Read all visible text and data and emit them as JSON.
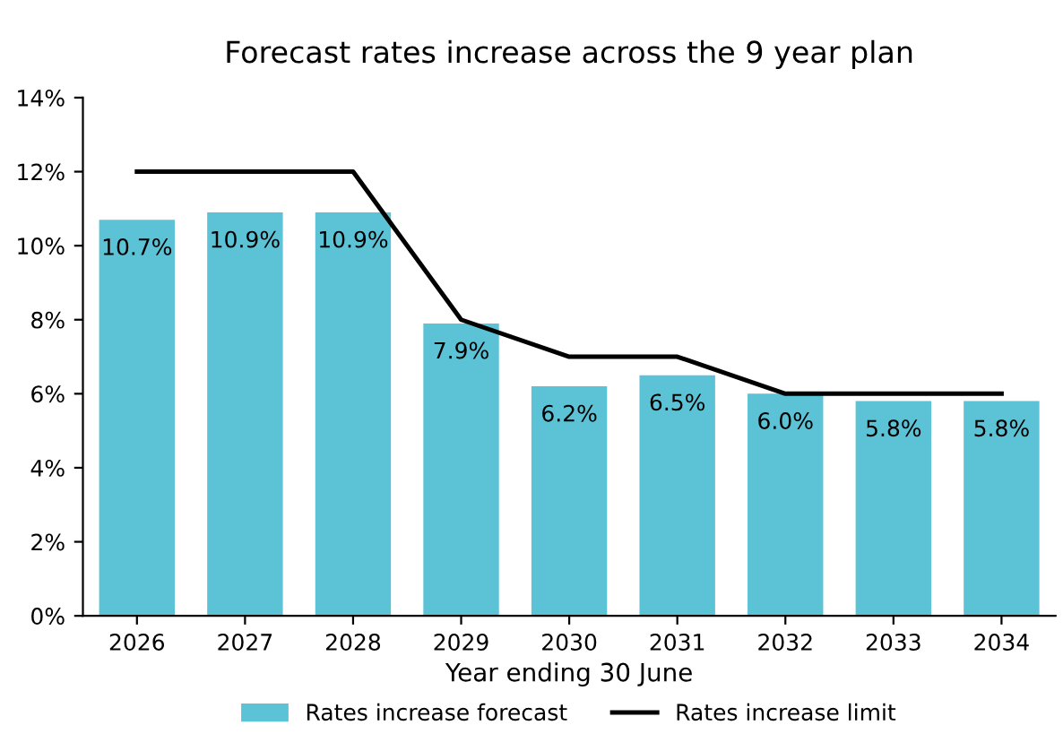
{
  "chart_data": {
    "type": "bar",
    "title": "Forecast rates increase across the 9 year plan",
    "xlabel": "Year ending 30 June",
    "categories": [
      "2026",
      "2027",
      "2028",
      "2029",
      "2030",
      "2031",
      "2032",
      "2033",
      "2034"
    ],
    "series": [
      {
        "name": "Rates increase forecast",
        "color": "#5bc3d5",
        "values": [
          10.7,
          10.9,
          10.9,
          7.9,
          6.2,
          6.5,
          6.0,
          5.8,
          5.8
        ],
        "value_labels": [
          "10.7%",
          "10.9%",
          "10.9%",
          "7.9%",
          "6.2%",
          "6.5%",
          "6.0%",
          "5.8%",
          "5.8%"
        ]
      },
      {
        "name": "Rates increase limit",
        "type": "line",
        "color": "#000000",
        "values": [
          12,
          12,
          12,
          8,
          7,
          7,
          6,
          6,
          6
        ]
      }
    ],
    "ylim": [
      0,
      14
    ],
    "yticks": [
      {
        "value": 0,
        "label": "0%"
      },
      {
        "value": 2,
        "label": "2%"
      },
      {
        "value": 4,
        "label": "4%"
      },
      {
        "value": 6,
        "label": "6%"
      },
      {
        "value": 8,
        "label": "8%"
      },
      {
        "value": 10,
        "label": "10%"
      },
      {
        "value": 12,
        "label": "12%"
      },
      {
        "value": 14,
        "label": "14%"
      }
    ],
    "grid": false,
    "legend": "bottom",
    "marker": "none",
    "line_style": "solid"
  }
}
